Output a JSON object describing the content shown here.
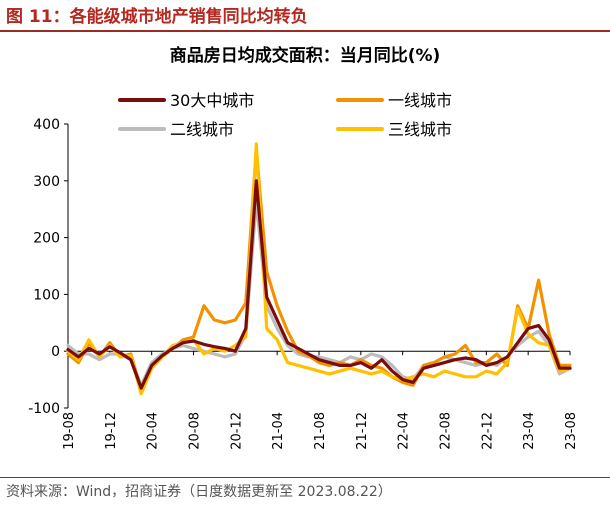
{
  "figure": {
    "title": "图 11：各能级城市地产销售同比均转负",
    "source": "资料来源：Wind，招商证券（日度数据更新至 2023.08.22）"
  },
  "chart_data": {
    "type": "line",
    "title": "商品房日均成交面积：当月同比(%)",
    "ylim": [
      -100,
      400
    ],
    "yticks": [
      -100,
      0,
      100,
      200,
      300,
      400
    ],
    "x_tick_labels": [
      "19-08",
      "19-12",
      "20-04",
      "20-08",
      "20-12",
      "21-04",
      "21-08",
      "21-12",
      "22-04",
      "22-08",
      "22-12",
      "23-04",
      "23-08"
    ],
    "x": [
      "19-08",
      "19-09",
      "19-10",
      "19-11",
      "19-12",
      "20-01",
      "20-02",
      "20-03",
      "20-04",
      "20-05",
      "20-06",
      "20-07",
      "20-08",
      "20-09",
      "20-10",
      "20-11",
      "20-12",
      "21-01",
      "21-02",
      "21-03",
      "21-04",
      "21-05",
      "21-06",
      "21-07",
      "21-08",
      "21-09",
      "21-10",
      "21-11",
      "21-12",
      "22-01",
      "22-02",
      "22-03",
      "22-04",
      "22-05",
      "22-06",
      "22-07",
      "22-08",
      "22-09",
      "22-10",
      "22-11",
      "22-12",
      "23-01",
      "23-02",
      "23-03",
      "23-04",
      "23-05",
      "23-06",
      "23-07",
      "23-08"
    ],
    "legend": [
      {
        "name": "30大中城市",
        "color": "#7b0c0c"
      },
      {
        "name": "一线城市",
        "color": "#f39200"
      },
      {
        "name": "二线城市",
        "color": "#bcbcbc"
      },
      {
        "name": "三线城市",
        "color": "#ffc000"
      }
    ],
    "series": [
      {
        "name": "30大中城市",
        "color": "#7b0c0c",
        "values": [
          3,
          -10,
          5,
          -5,
          8,
          -3,
          -15,
          -65,
          -25,
          -8,
          5,
          15,
          18,
          12,
          8,
          5,
          0,
          40,
          300,
          95,
          55,
          15,
          5,
          -5,
          -15,
          -20,
          -25,
          -25,
          -20,
          -30,
          -15,
          -35,
          -50,
          -55,
          -30,
          -25,
          -20,
          -15,
          -12,
          -15,
          -25,
          -20,
          -10,
          15,
          40,
          45,
          20,
          -30,
          -30
        ]
      },
      {
        "name": "一线城市",
        "color": "#f39200",
        "values": [
          -5,
          -20,
          15,
          -10,
          15,
          -10,
          -5,
          -68,
          -30,
          -10,
          5,
          20,
          25,
          80,
          55,
          50,
          55,
          85,
          355,
          140,
          80,
          35,
          0,
          -8,
          -20,
          -25,
          -20,
          -25,
          -15,
          -25,
          -30,
          -45,
          -55,
          -60,
          -25,
          -20,
          -10,
          -5,
          10,
          -20,
          -20,
          -5,
          -25,
          80,
          40,
          125,
          30,
          -25,
          -25
        ]
      },
      {
        "name": "二线城市",
        "color": "#bcbcbc",
        "values": [
          10,
          -5,
          -5,
          -15,
          -5,
          -5,
          -15,
          -60,
          -20,
          -5,
          5,
          10,
          5,
          0,
          -5,
          -10,
          -5,
          30,
          265,
          80,
          40,
          10,
          -5,
          -10,
          -10,
          -15,
          -20,
          -10,
          -15,
          -5,
          -10,
          -25,
          -45,
          -50,
          -25,
          -20,
          -10,
          -15,
          -20,
          -25,
          -20,
          -25,
          -10,
          10,
          25,
          35,
          10,
          -40,
          -30
        ]
      },
      {
        "name": "三线城市",
        "color": "#ffc000",
        "values": [
          0,
          -15,
          20,
          -10,
          10,
          -10,
          -8,
          -75,
          -30,
          -10,
          10,
          15,
          20,
          -5,
          5,
          0,
          10,
          25,
          365,
          40,
          20,
          -20,
          -25,
          -30,
          -35,
          -40,
          -35,
          -30,
          -35,
          -40,
          -35,
          -45,
          -50,
          -45,
          -40,
          -45,
          -35,
          -40,
          -45,
          -45,
          -35,
          -40,
          -20,
          75,
          30,
          15,
          10,
          -35,
          -30
        ]
      }
    ]
  }
}
